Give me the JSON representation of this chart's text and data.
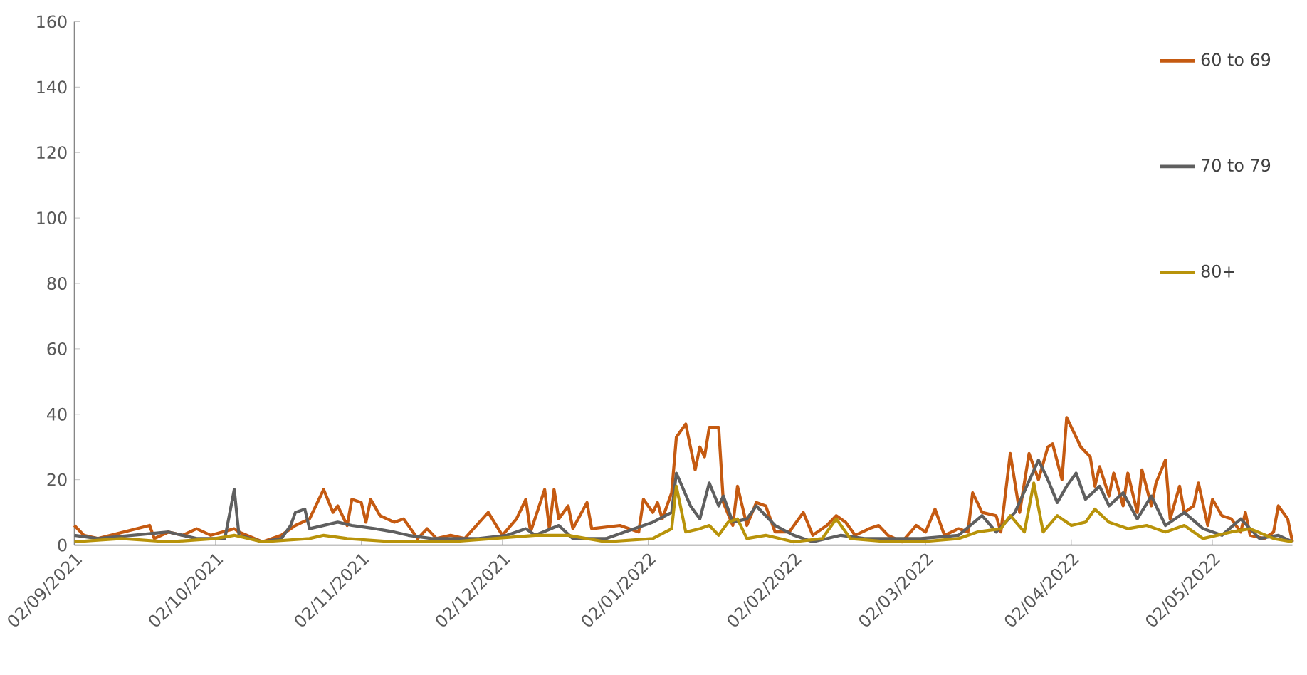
{
  "chart_data": {
    "type": "line",
    "xlim": [
      "2021-09-02",
      "2022-05-19"
    ],
    "xticks": [
      {
        "value": "2021-09-02",
        "label": "02/09/2021"
      },
      {
        "value": "2021-10-02",
        "label": "02/10/2021"
      },
      {
        "value": "2021-11-02",
        "label": "02/11/2021"
      },
      {
        "value": "2021-12-02",
        "label": "02/12/2021"
      },
      {
        "value": "2022-01-02",
        "label": "02/01/2022"
      },
      {
        "value": "2022-02-02",
        "label": "02/02/2022"
      },
      {
        "value": "2022-03-02",
        "label": "02/03/2022"
      },
      {
        "value": "2022-04-02",
        "label": "02/04/2022"
      },
      {
        "value": "2022-05-02",
        "label": "02/05/2022"
      }
    ],
    "ylim": [
      0,
      160
    ],
    "yticks": [
      0,
      20,
      40,
      60,
      80,
      100,
      120,
      140,
      160
    ],
    "grid": false,
    "legend": "top right",
    "marker": "none",
    "line_style": "solid",
    "series": [
      {
        "name": "60 to 69",
        "color": "#c55a11",
        "x": [
          "2021-09-02",
          "2021-09-04",
          "2021-09-07",
          "2021-09-18",
          "2021-09-19",
          "2021-09-22",
          "2021-09-25",
          "2021-09-28",
          "2021-10-01",
          "2021-10-06",
          "2021-10-07",
          "2021-10-12",
          "2021-10-16",
          "2021-10-19",
          "2021-10-22",
          "2021-10-25",
          "2021-10-27",
          "2021-10-28",
          "2021-10-30",
          "2021-10-31",
          "2021-11-02",
          "2021-11-03",
          "2021-11-04",
          "2021-11-06",
          "2021-11-09",
          "2021-11-11",
          "2021-11-14",
          "2021-11-16",
          "2021-11-18",
          "2021-11-21",
          "2021-11-24",
          "2021-11-29",
          "2021-12-02",
          "2021-12-05",
          "2021-12-07",
          "2021-12-08",
          "2021-12-11",
          "2021-12-12",
          "2021-12-13",
          "2021-12-14",
          "2021-12-16",
          "2021-12-17",
          "2021-12-20",
          "2021-12-21",
          "2021-12-27",
          "2021-12-31",
          "2022-01-01",
          "2022-01-03",
          "2022-01-04",
          "2022-01-05",
          "2022-01-07",
          "2022-01-08",
          "2022-01-10",
          "2022-01-12",
          "2022-01-13",
          "2022-01-14",
          "2022-01-15",
          "2022-01-17",
          "2022-01-18",
          "2022-01-20",
          "2022-01-21",
          "2022-01-23",
          "2022-01-25",
          "2022-01-27",
          "2022-01-29",
          "2022-02-01",
          "2022-02-04",
          "2022-02-06",
          "2022-02-09",
          "2022-02-11",
          "2022-02-13",
          "2022-02-15",
          "2022-02-18",
          "2022-02-20",
          "2022-02-22",
          "2022-02-25",
          "2022-02-28",
          "2022-03-02",
          "2022-03-04",
          "2022-03-06",
          "2022-03-09",
          "2022-03-11",
          "2022-03-12",
          "2022-03-14",
          "2022-03-17",
          "2022-03-18",
          "2022-03-20",
          "2022-03-22",
          "2022-03-24",
          "2022-03-26",
          "2022-03-28",
          "2022-03-29",
          "2022-03-31",
          "2022-04-01",
          "2022-04-03",
          "2022-04-04",
          "2022-04-06",
          "2022-04-07",
          "2022-04-08",
          "2022-04-10",
          "2022-04-11",
          "2022-04-13",
          "2022-04-14",
          "2022-04-16",
          "2022-04-17",
          "2022-04-19",
          "2022-04-20",
          "2022-04-22",
          "2022-04-23",
          "2022-04-25",
          "2022-04-26",
          "2022-04-28",
          "2022-04-29",
          "2022-05-01",
          "2022-05-02",
          "2022-05-04",
          "2022-05-06",
          "2022-05-08",
          "2022-05-09",
          "2022-05-10",
          "2022-05-13",
          "2022-05-15",
          "2022-05-16",
          "2022-05-18",
          "2022-05-19"
        ],
        "values": [
          6,
          3,
          2,
          6,
          2,
          4,
          3,
          5,
          3,
          5,
          4,
          1,
          3,
          6,
          8,
          17,
          10,
          12,
          6,
          14,
          13,
          7,
          14,
          9,
          7,
          8,
          2,
          5,
          2,
          3,
          2,
          10,
          3,
          8,
          14,
          4,
          17,
          5,
          17,
          8,
          12,
          5,
          13,
          5,
          6,
          4,
          14,
          10,
          13,
          8,
          16,
          33,
          37,
          23,
          30,
          27,
          36,
          36,
          13,
          6,
          18,
          6,
          13,
          12,
          4,
          4,
          10,
          3,
          6,
          9,
          7,
          3,
          5,
          6,
          3,
          1,
          6,
          4,
          11,
          3,
          5,
          4,
          16,
          10,
          9,
          4,
          28,
          10,
          28,
          20,
          30,
          31,
          20,
          39,
          33,
          30,
          27,
          18,
          24,
          15,
          22,
          12,
          22,
          10,
          23,
          12,
          19,
          26,
          8,
          18,
          10,
          12,
          19,
          6,
          14,
          9,
          8,
          4,
          10,
          3,
          2,
          4,
          12,
          8,
          1
        ]
      },
      {
        "name": "70 to 79",
        "color": "#5f5f5f",
        "x": [
          "2021-09-02",
          "2021-09-07",
          "2021-09-22",
          "2021-09-28",
          "2021-10-04",
          "2021-10-06",
          "2021-10-07",
          "2021-10-12",
          "2021-10-16",
          "2021-10-18",
          "2021-10-19",
          "2021-10-21",
          "2021-10-22",
          "2021-10-25",
          "2021-10-28",
          "2021-10-31",
          "2021-11-05",
          "2021-11-09",
          "2021-11-12",
          "2021-11-17",
          "2021-11-27",
          "2021-12-03",
          "2021-12-07",
          "2021-12-09",
          "2021-12-14",
          "2021-12-17",
          "2021-12-24",
          "2022-01-03",
          "2022-01-07",
          "2022-01-08",
          "2022-01-11",
          "2022-01-13",
          "2022-01-15",
          "2022-01-17",
          "2022-01-18",
          "2022-01-20",
          "2022-01-23",
          "2022-01-25",
          "2022-01-29",
          "2022-02-02",
          "2022-02-06",
          "2022-02-12",
          "2022-02-17",
          "2022-03-01",
          "2022-03-09",
          "2022-03-14",
          "2022-03-17",
          "2022-03-21",
          "2022-03-26",
          "2022-03-28",
          "2022-03-30",
          "2022-04-01",
          "2022-04-03",
          "2022-04-05",
          "2022-04-08",
          "2022-04-10",
          "2022-04-13",
          "2022-04-16",
          "2022-04-19",
          "2022-04-22",
          "2022-04-26",
          "2022-04-30",
          "2022-05-04",
          "2022-05-08",
          "2022-05-12",
          "2022-05-16",
          "2022-05-19"
        ],
        "values": [
          3,
          2,
          4,
          2,
          2,
          17,
          3,
          1,
          2,
          6,
          10,
          11,
          5,
          6,
          7,
          6,
          5,
          4,
          3,
          2,
          2,
          3,
          5,
          3,
          6,
          2,
          2,
          7,
          10,
          22,
          12,
          8,
          19,
          12,
          15,
          7,
          8,
          12,
          6,
          3,
          1,
          3,
          2,
          2,
          3,
          9,
          4,
          10,
          26,
          20,
          13,
          18,
          22,
          14,
          18,
          12,
          16,
          8,
          15,
          6,
          10,
          5,
          3,
          8,
          2,
          3,
          1
        ]
      },
      {
        "name": "80+",
        "color": "#b8930a",
        "x": [
          "2021-09-02",
          "2021-09-12",
          "2021-09-22",
          "2021-10-02",
          "2021-10-06",
          "2021-10-12",
          "2021-10-22",
          "2021-10-25",
          "2021-10-30",
          "2021-11-09",
          "2021-11-21",
          "2021-12-09",
          "2021-12-16",
          "2021-12-24",
          "2022-01-03",
          "2022-01-07",
          "2022-01-08",
          "2022-01-10",
          "2022-01-13",
          "2022-01-15",
          "2022-01-17",
          "2022-01-19",
          "2022-01-21",
          "2022-01-23",
          "2022-01-27",
          "2022-02-02",
          "2022-02-08",
          "2022-02-11",
          "2022-02-14",
          "2022-02-22",
          "2022-03-01",
          "2022-03-09",
          "2022-03-13",
          "2022-03-18",
          "2022-03-20",
          "2022-03-23",
          "2022-03-25",
          "2022-03-27",
          "2022-03-30",
          "2022-04-02",
          "2022-04-05",
          "2022-04-07",
          "2022-04-10",
          "2022-04-14",
          "2022-04-18",
          "2022-04-22",
          "2022-04-26",
          "2022-04-30",
          "2022-05-06",
          "2022-05-10",
          "2022-05-15",
          "2022-05-19"
        ],
        "values": [
          1,
          2,
          1,
          2,
          3,
          1,
          2,
          3,
          2,
          1,
          1,
          3,
          3,
          1,
          2,
          5,
          18,
          4,
          5,
          6,
          3,
          7,
          8,
          2,
          3,
          1,
          2,
          8,
          2,
          1,
          1,
          2,
          4,
          5,
          9,
          4,
          19,
          4,
          9,
          6,
          7,
          11,
          7,
          5,
          6,
          4,
          6,
          2,
          4,
          5,
          2,
          1
        ]
      }
    ]
  }
}
